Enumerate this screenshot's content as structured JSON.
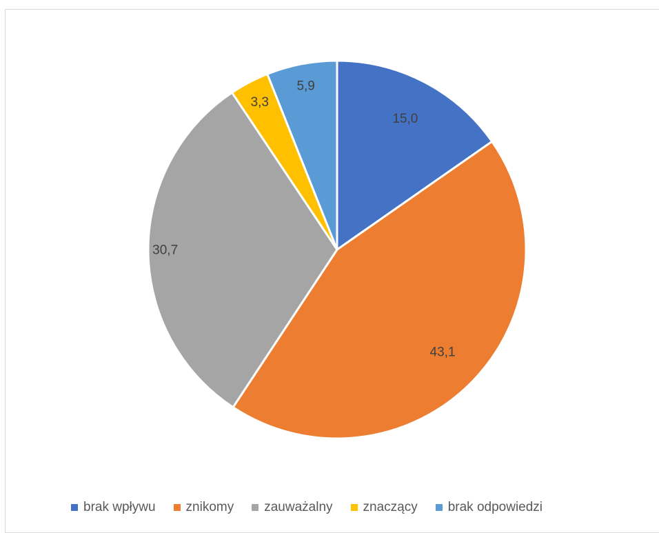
{
  "chart_data": {
    "type": "pie",
    "title": "",
    "categories": [
      "brak wpływu",
      "znikomy",
      "zauważalny",
      "znaczący",
      "brak odpowiedzi"
    ],
    "values": [
      15.0,
      43.1,
      30.7,
      3.3,
      5.9
    ],
    "labels": [
      "15,0",
      "43,1",
      "30,7",
      "3,3",
      "5,9"
    ],
    "colors": [
      "#4472c4",
      "#ed7d31",
      "#a5a5a5",
      "#ffc000",
      "#5b9bd5"
    ],
    "start_angle": "12 o'clock",
    "direction": "clockwise",
    "legend_position": "bottom"
  }
}
